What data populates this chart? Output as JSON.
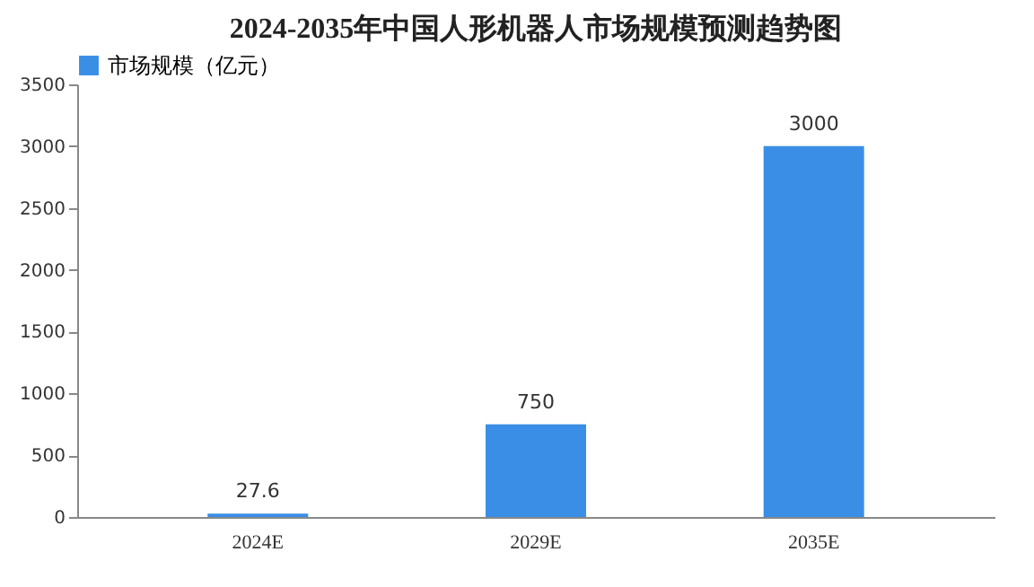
{
  "chart_data": {
    "type": "bar",
    "title": "2024-2035年中国人形机器人市场规模预测趋势图",
    "categories": [
      "2024E",
      "2029E",
      "2035E"
    ],
    "series": [
      {
        "name": "市场规模（亿元）",
        "color": "#3a8ee6",
        "values": [
          27.6,
          750,
          3000
        ]
      }
    ],
    "ylim": [
      0,
      3500
    ],
    "yticks": [
      0,
      500,
      1000,
      1500,
      2000,
      2500,
      3000,
      3500
    ],
    "data_labels": true,
    "legend": "top",
    "grid": false
  }
}
